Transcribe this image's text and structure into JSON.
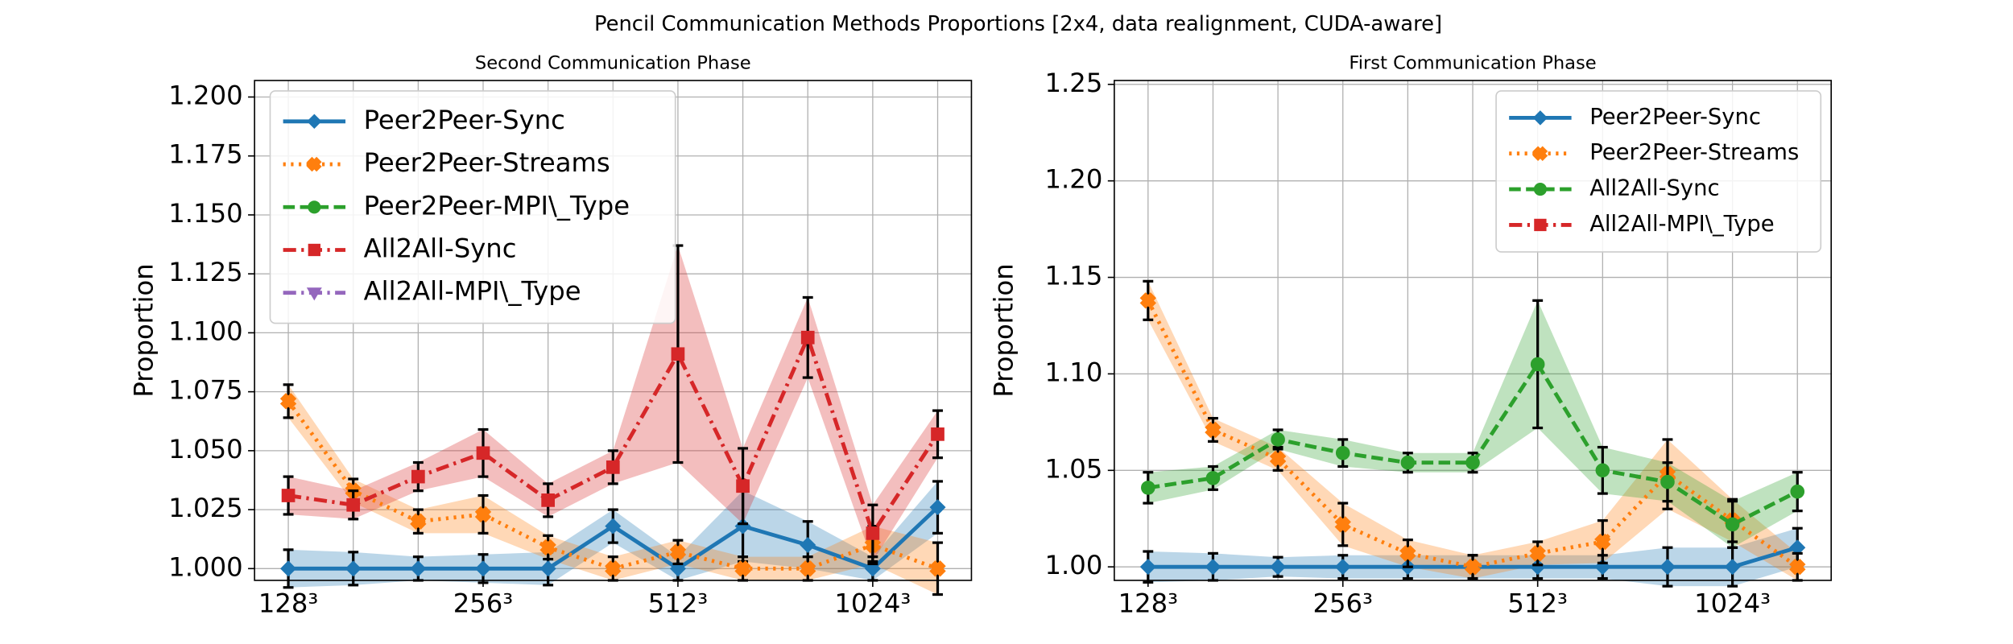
{
  "title": "Pencil Communication Methods Proportions [2x4, data realignment, CUDA-aware]",
  "chart_data": [
    {
      "type": "line",
      "title": "Second Communication Phase",
      "ylabel": "Proportion",
      "categories": [
        "128³",
        null,
        null,
        "256³",
        null,
        null,
        "512³",
        null,
        null,
        "1024³",
        null
      ],
      "ylim": [
        0.995,
        1.207
      ],
      "yticks": [
        {
          "value": 1.0,
          "label": "1.000"
        },
        {
          "value": 1.025,
          "label": "1.025"
        },
        {
          "value": 1.05,
          "label": "1.050"
        },
        {
          "value": 1.075,
          "label": "1.075"
        },
        {
          "value": 1.1,
          "label": "1.100"
        },
        {
          "value": 1.125,
          "label": "1.125"
        },
        {
          "value": 1.15,
          "label": "1.150"
        },
        {
          "value": 1.175,
          "label": "1.175"
        },
        {
          "value": 1.2,
          "label": "1.200"
        }
      ],
      "grid": true,
      "legend": "upper left",
      "series": [
        {
          "name": "Peer2Peer-Sync",
          "color": "#1f77b4",
          "style": "solid",
          "marker": "diamond",
          "values": [
            1.0,
            1.0,
            1.0,
            1.0,
            1.0,
            1.018,
            1.0,
            1.018,
            1.01,
            1.0,
            1.026
          ],
          "errors": [
            0.008,
            0.007,
            0.005,
            0.006,
            0.007,
            0.007,
            0.005,
            0.015,
            0.01,
            0.005,
            0.011
          ]
        },
        {
          "name": "Peer2Peer-Streams",
          "color": "#ff7f0e",
          "style": "dotted",
          "marker": "x",
          "values": [
            1.071,
            1.033,
            1.02,
            1.023,
            1.009,
            1.0,
            1.007,
            1.0,
            1.0,
            1.01,
            1.0
          ],
          "errors": [
            0.007,
            0.005,
            0.005,
            0.008,
            0.005,
            0.005,
            0.005,
            0.005,
            0.005,
            0.008,
            0.011
          ]
        },
        {
          "name": "Peer2Peer-MPI\\_Type",
          "color": "#2ca02c",
          "style": "dashed",
          "marker": "circle",
          "values": [
            null,
            null,
            null,
            null,
            null,
            null,
            null,
            null,
            null,
            null,
            null
          ]
        },
        {
          "name": "All2All-Sync",
          "color": "#d62728",
          "style": "dashdot",
          "marker": "square",
          "values": [
            1.031,
            1.027,
            1.039,
            1.049,
            1.029,
            1.043,
            1.091,
            1.035,
            1.098,
            1.015,
            1.057
          ],
          "errors": [
            0.008,
            0.006,
            0.006,
            0.01,
            0.007,
            0.007,
            0.046,
            0.016,
            0.017,
            0.012,
            0.01
          ]
        },
        {
          "name": "All2All-MPI\\_Type",
          "color": "#9467bd",
          "style": "dashdot",
          "marker": "triangle",
          "values": [
            null,
            null,
            null,
            null,
            null,
            null,
            null,
            null,
            null,
            null,
            null
          ]
        }
      ]
    },
    {
      "type": "line",
      "title": "First Communication Phase",
      "ylabel": "Proportion",
      "categories": [
        "128³",
        null,
        null,
        "256³",
        null,
        null,
        "512³",
        null,
        null,
        "1024³",
        null
      ],
      "ylim": [
        0.993,
        1.252
      ],
      "yticks": [
        {
          "value": 1.0,
          "label": "1.00"
        },
        {
          "value": 1.05,
          "label": "1.05"
        },
        {
          "value": 1.1,
          "label": "1.10"
        },
        {
          "value": 1.15,
          "label": "1.15"
        },
        {
          "value": 1.2,
          "label": "1.20"
        },
        {
          "value": 1.25,
          "label": "1.25"
        }
      ],
      "grid": true,
      "legend": "upper right",
      "series": [
        {
          "name": "Peer2Peer-Sync",
          "color": "#1f77b4",
          "style": "solid",
          "marker": "diamond",
          "values": [
            1.0,
            1.0,
            1.0,
            1.0,
            1.0,
            1.0,
            1.0,
            1.0,
            1.0,
            1.0,
            1.01
          ],
          "errors": [
            0.008,
            0.007,
            0.005,
            0.006,
            0.006,
            0.006,
            0.006,
            0.006,
            0.01,
            0.01,
            0.01
          ]
        },
        {
          "name": "Peer2Peer-Streams",
          "color": "#ff7f0e",
          "style": "dotted",
          "marker": "x",
          "values": [
            1.138,
            1.071,
            1.056,
            1.022,
            1.007,
            1.0,
            1.007,
            1.013,
            1.048,
            1.024,
            1.0
          ],
          "errors": [
            0.01,
            0.006,
            0.006,
            0.011,
            0.007,
            0.006,
            0.006,
            0.011,
            0.018,
            0.011,
            0.007
          ]
        },
        {
          "name": "All2All-Sync",
          "color": "#2ca02c",
          "style": "dashed",
          "marker": "circle",
          "values": [
            1.041,
            1.046,
            1.066,
            1.059,
            1.054,
            1.054,
            1.105,
            1.05,
            1.044,
            1.022,
            1.039
          ],
          "errors": [
            0.008,
            0.006,
            0.005,
            0.007,
            0.005,
            0.005,
            0.033,
            0.012,
            0.01,
            0.012,
            0.01
          ]
        },
        {
          "name": "All2All-MPI\\_Type",
          "color": "#d62728",
          "style": "dashdot",
          "marker": "square",
          "values": [
            null,
            null,
            null,
            null,
            null,
            null,
            null,
            null,
            null,
            null,
            null
          ]
        }
      ]
    }
  ]
}
